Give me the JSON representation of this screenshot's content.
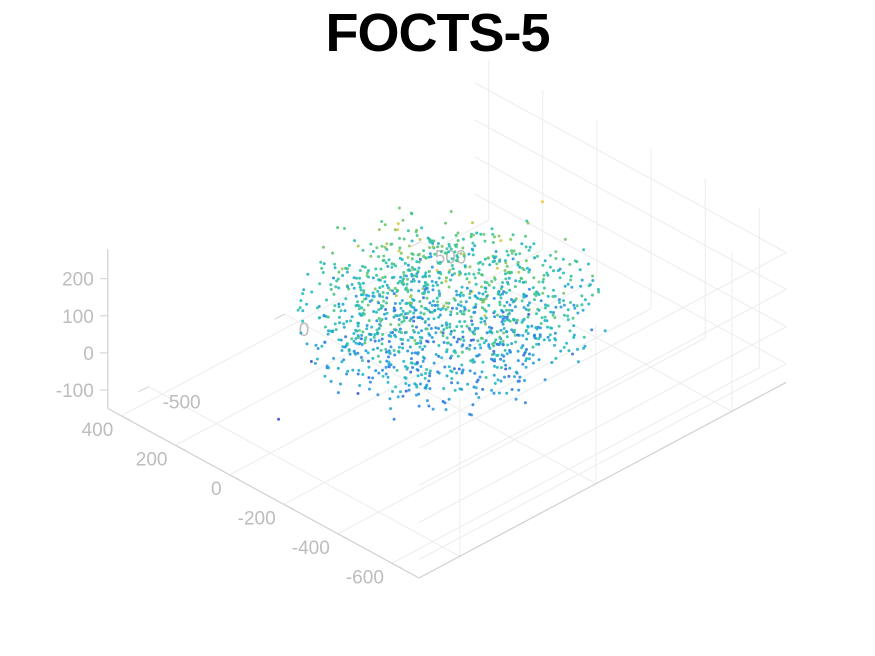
{
  "chart_data": {
    "type": "scatter",
    "title": "FOCTS-5",
    "view": "3d-isometric",
    "grid": true,
    "xlabel": "",
    "ylabel": "",
    "zlabel": "",
    "xlim": [
      -700,
      450
    ],
    "ylim": [
      -650,
      700
    ],
    "zlim": [
      -150,
      280
    ],
    "x_ticks": [
      "-600",
      "-400",
      "-200",
      "0",
      "200",
      "400"
    ],
    "y_ticks": [
      "-500",
      "0",
      "500"
    ],
    "z_ticks": [
      "-100",
      "0",
      "100",
      "200"
    ],
    "colormap": [
      "#3f4fd8",
      "#2c8fe6",
      "#1fbfc0",
      "#52c878",
      "#f0c53a"
    ],
    "color_by": "z",
    "point_count": 2600,
    "cluster": {
      "shape": "flattened ellipsoid",
      "center": [
        -100,
        50,
        60
      ],
      "radii": [
        430,
        460,
        140
      ]
    },
    "sample_points": [
      [
        -120,
        40,
        180
      ],
      [
        -300,
        -100,
        120
      ],
      [
        100,
        200,
        90
      ],
      [
        -50,
        -300,
        20
      ],
      [
        250,
        300,
        -40
      ],
      [
        -400,
        150,
        60
      ],
      [
        0,
        0,
        100
      ],
      [
        -200,
        350,
        140
      ],
      [
        150,
        -200,
        -80
      ],
      [
        -350,
        -250,
        10
      ],
      [
        320,
        50,
        -20
      ],
      [
        -80,
        420,
        200
      ],
      [
        50,
        -420,
        -110
      ],
      [
        -250,
        50,
        160
      ],
      [
        200,
        -50,
        40
      ],
      [
        -150,
        -150,
        -60
      ]
    ]
  }
}
